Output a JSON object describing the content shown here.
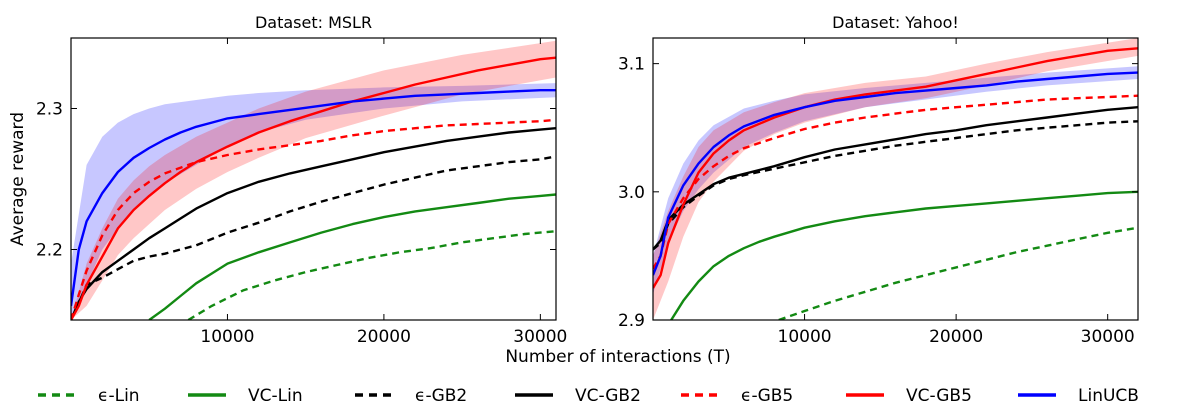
{
  "figure": {
    "xlabel": "Number of interactions (T)"
  },
  "legend": [
    {
      "label": "ϵ-Lin",
      "color": "#138a13",
      "dash": true
    },
    {
      "label": "VC-Lin",
      "color": "#138a13",
      "dash": false
    },
    {
      "label": "ϵ-GB2",
      "color": "#000000",
      "dash": true
    },
    {
      "label": "VC-GB2",
      "color": "#000000",
      "dash": false
    },
    {
      "label": "ϵ-GB5",
      "color": "#ff0000",
      "dash": true
    },
    {
      "label": "VC-GB5",
      "color": "#ff0000",
      "dash": false
    },
    {
      "label": "LinUCB",
      "color": "#0000ff",
      "dash": false
    }
  ],
  "chart_data": [
    {
      "type": "line",
      "title": "Dataset: MSLR",
      "xlabel": "Number of interactions (T)",
      "ylabel": "Average reward",
      "xlim": [
        0,
        31000
      ],
      "ylim": [
        2.15,
        2.35
      ],
      "xticks": [
        10000,
        20000,
        30000
      ],
      "yticks": [
        2.2,
        2.3
      ],
      "ytick_labels": [
        "2.2",
        "2.3"
      ],
      "grid": false,
      "legend": "bottom (shared)",
      "series": [
        {
          "name": "ϵ-Lin",
          "color": "#138a13",
          "dash": true,
          "x": [
            7500,
            9000,
            11000,
            13000,
            15000,
            17000,
            19000,
            21000,
            23000,
            25000,
            27000,
            29000,
            31000
          ],
          "y": [
            2.15,
            2.16,
            2.171,
            2.178,
            2.184,
            2.189,
            2.194,
            2.198,
            2.201,
            2.205,
            2.208,
            2.211,
            2.213
          ]
        },
        {
          "name": "VC-Lin",
          "color": "#138a13",
          "dash": false,
          "x": [
            5000,
            6000,
            7000,
            8000,
            9000,
            10000,
            12000,
            14000,
            16000,
            18000,
            20000,
            22000,
            24000,
            26000,
            28000,
            30000,
            31000
          ],
          "y": [
            2.15,
            2.158,
            2.167,
            2.176,
            2.183,
            2.19,
            2.198,
            2.205,
            2.212,
            2.218,
            2.223,
            2.227,
            2.23,
            2.233,
            2.236,
            2.238,
            2.239
          ]
        },
        {
          "name": "ϵ-GB2",
          "color": "#000000",
          "dash": true,
          "x": [
            0,
            500,
            1000,
            2000,
            3000,
            4000,
            5000,
            6000,
            7000,
            8000,
            10000,
            12000,
            14000,
            16000,
            18000,
            20000,
            22000,
            24000,
            26000,
            28000,
            30000,
            31000
          ],
          "y": [
            2.15,
            2.162,
            2.175,
            2.18,
            2.186,
            2.192,
            2.195,
            2.197,
            2.2,
            2.203,
            2.212,
            2.219,
            2.227,
            2.234,
            2.24,
            2.246,
            2.251,
            2.256,
            2.259,
            2.262,
            2.264,
            2.266
          ]
        },
        {
          "name": "VC-GB2",
          "color": "#000000",
          "dash": false,
          "x": [
            0,
            500,
            1000,
            2000,
            3000,
            4000,
            5000,
            6000,
            7000,
            8000,
            10000,
            12000,
            14000,
            16000,
            18000,
            20000,
            22000,
            24000,
            26000,
            28000,
            30000,
            31000
          ],
          "y": [
            2.15,
            2.163,
            2.172,
            2.184,
            2.192,
            2.2,
            2.208,
            2.215,
            2.222,
            2.229,
            2.24,
            2.248,
            2.254,
            2.259,
            2.264,
            2.269,
            2.273,
            2.277,
            2.28,
            2.283,
            2.285,
            2.286
          ]
        },
        {
          "name": "ϵ-GB5",
          "color": "#ff0000",
          "dash": true,
          "x": [
            0,
            500,
            1000,
            2000,
            3000,
            4000,
            5000,
            6000,
            7000,
            8000,
            10000,
            12000,
            14000,
            16000,
            18000,
            20000,
            22000,
            24000,
            26000,
            28000,
            30000,
            31000
          ],
          "y": [
            2.15,
            2.168,
            2.185,
            2.21,
            2.228,
            2.24,
            2.248,
            2.254,
            2.258,
            2.262,
            2.267,
            2.271,
            2.274,
            2.277,
            2.281,
            2.284,
            2.286,
            2.288,
            2.289,
            2.29,
            2.291,
            2.292
          ]
        },
        {
          "name": "VC-GB5",
          "color": "#ff0000",
          "dash": false,
          "x": [
            0,
            500,
            1000,
            2000,
            3000,
            4000,
            5000,
            6000,
            7000,
            8000,
            10000,
            12000,
            14000,
            16000,
            18000,
            20000,
            22000,
            24000,
            26000,
            28000,
            30000,
            31000
          ],
          "y": [
            2.15,
            2.16,
            2.175,
            2.195,
            2.215,
            2.228,
            2.238,
            2.247,
            2.255,
            2.262,
            2.273,
            2.283,
            2.291,
            2.298,
            2.305,
            2.311,
            2.317,
            2.322,
            2.327,
            2.331,
            2.335,
            2.336
          ]
        },
        {
          "name": "LinUCB",
          "color": "#0000ff",
          "dash": false,
          "x": [
            0,
            500,
            1000,
            2000,
            3000,
            4000,
            5000,
            6000,
            7000,
            8000,
            9000,
            10000,
            12000,
            14000,
            16000,
            18000,
            20000,
            22000,
            24000,
            26000,
            28000,
            30000,
            31000
          ],
          "y": [
            2.16,
            2.2,
            2.22,
            2.24,
            2.255,
            2.265,
            2.272,
            2.278,
            2.283,
            2.287,
            2.29,
            2.293,
            2.296,
            2.299,
            2.302,
            2.305,
            2.307,
            2.309,
            2.31,
            2.311,
            2.312,
            2.313,
            2.313
          ]
        }
      ],
      "bands": [
        {
          "color": "#0000ff",
          "x": [
            0,
            1000,
            2000,
            3000,
            4000,
            5000,
            6000,
            8000,
            10000,
            12000,
            15000,
            20000,
            25000,
            31000
          ],
          "lower": [
            2.15,
            2.175,
            2.2,
            2.215,
            2.228,
            2.238,
            2.247,
            2.26,
            2.273,
            2.283,
            2.292,
            2.3,
            2.305,
            2.308
          ],
          "upper": [
            2.19,
            2.26,
            2.28,
            2.29,
            2.296,
            2.3,
            2.303,
            2.306,
            2.309,
            2.311,
            2.313,
            2.315,
            2.316,
            2.318
          ]
        },
        {
          "color": "#ff0000",
          "x": [
            0,
            1000,
            2000,
            3000,
            4000,
            5000,
            6000,
            8000,
            10000,
            12000,
            15000,
            20000,
            25000,
            31000
          ],
          "lower": [
            2.15,
            2.16,
            2.178,
            2.196,
            2.208,
            2.218,
            2.228,
            2.243,
            2.255,
            2.265,
            2.279,
            2.295,
            2.31,
            2.322
          ],
          "upper": [
            2.15,
            2.19,
            2.215,
            2.236,
            2.249,
            2.259,
            2.267,
            2.28,
            2.29,
            2.3,
            2.312,
            2.327,
            2.338,
            2.348
          ]
        }
      ]
    },
    {
      "type": "line",
      "title": "Dataset: Yahoo!",
      "xlabel": "Number of interactions (T)",
      "ylabel": "",
      "xlim": [
        0,
        32000
      ],
      "ylim": [
        2.9,
        3.12
      ],
      "xticks": [
        10000,
        20000,
        30000
      ],
      "yticks": [
        2.9,
        3.0,
        3.1
      ],
      "ytick_labels": [
        "2.9",
        "3.0",
        "3.1"
      ],
      "grid": false,
      "legend": "bottom (shared)",
      "series": [
        {
          "name": "ϵ-Lin",
          "color": "#138a13",
          "dash": true,
          "x": [
            8300,
            10000,
            12000,
            14000,
            16000,
            18000,
            20000,
            22000,
            24000,
            26000,
            28000,
            30000,
            32000
          ],
          "y": [
            2.9,
            2.907,
            2.915,
            2.922,
            2.929,
            2.935,
            2.941,
            2.947,
            2.953,
            2.958,
            2.963,
            2.968,
            2.972
          ]
        },
        {
          "name": "VC-Lin",
          "color": "#138a13",
          "dash": false,
          "x": [
            1200,
            2000,
            3000,
            4000,
            5000,
            6000,
            7000,
            8000,
            10000,
            12000,
            14000,
            16000,
            18000,
            20000,
            22000,
            24000,
            26000,
            28000,
            30000,
            32000
          ],
          "y": [
            2.9,
            2.915,
            2.93,
            2.942,
            2.95,
            2.956,
            2.961,
            2.965,
            2.972,
            2.977,
            2.981,
            2.984,
            2.987,
            2.989,
            2.991,
            2.993,
            2.995,
            2.997,
            2.999,
            3.0
          ]
        },
        {
          "name": "ϵ-GB2",
          "color": "#000000",
          "dash": true,
          "x": [
            0,
            500,
            1000,
            2000,
            3000,
            4000,
            5000,
            6000,
            8000,
            10000,
            12000,
            14000,
            16000,
            18000,
            20000,
            22000,
            24000,
            26000,
            28000,
            30000,
            32000
          ],
          "y": [
            2.955,
            2.96,
            2.975,
            2.988,
            2.997,
            3.005,
            3.01,
            3.013,
            3.018,
            3.023,
            3.028,
            3.032,
            3.036,
            3.039,
            3.042,
            3.045,
            3.048,
            3.05,
            3.052,
            3.054,
            3.055
          ]
        },
        {
          "name": "VC-GB2",
          "color": "#000000",
          "dash": false,
          "x": [
            0,
            500,
            1000,
            2000,
            3000,
            4000,
            5000,
            6000,
            8000,
            10000,
            12000,
            14000,
            16000,
            18000,
            20000,
            22000,
            24000,
            26000,
            28000,
            30000,
            32000
          ],
          "y": [
            2.955,
            2.962,
            2.978,
            2.99,
            2.998,
            3.006,
            3.011,
            3.014,
            3.02,
            3.027,
            3.033,
            3.037,
            3.041,
            3.045,
            3.048,
            3.052,
            3.055,
            3.058,
            3.061,
            3.064,
            3.066
          ]
        },
        {
          "name": "ϵ-GB5",
          "color": "#ff0000",
          "dash": true,
          "x": [
            0,
            500,
            1000,
            2000,
            3000,
            4000,
            5000,
            6000,
            8000,
            10000,
            12000,
            14000,
            16000,
            18000,
            20000,
            22000,
            24000,
            26000,
            28000,
            30000,
            32000
          ],
          "y": [
            2.94,
            2.95,
            2.975,
            2.995,
            3.01,
            3.02,
            3.028,
            3.034,
            3.042,
            3.049,
            3.054,
            3.058,
            3.061,
            3.064,
            3.066,
            3.068,
            3.07,
            3.072,
            3.073,
            3.074,
            3.075
          ]
        },
        {
          "name": "VC-GB5",
          "color": "#ff0000",
          "dash": false,
          "x": [
            0,
            500,
            1000,
            2000,
            3000,
            4000,
            5000,
            6000,
            8000,
            10000,
            12000,
            14000,
            16000,
            18000,
            20000,
            22000,
            24000,
            26000,
            28000,
            30000,
            32000
          ],
          "y": [
            2.925,
            2.935,
            2.96,
            2.99,
            3.015,
            3.03,
            3.04,
            3.048,
            3.058,
            3.066,
            3.072,
            3.076,
            3.079,
            3.082,
            3.087,
            3.092,
            3.097,
            3.102,
            3.106,
            3.11,
            3.112
          ]
        },
        {
          "name": "LinUCB",
          "color": "#0000ff",
          "dash": false,
          "x": [
            0,
            500,
            1000,
            2000,
            3000,
            4000,
            5000,
            6000,
            8000,
            10000,
            12000,
            14000,
            16000,
            18000,
            20000,
            22000,
            24000,
            26000,
            28000,
            30000,
            32000
          ],
          "y": [
            2.935,
            2.95,
            2.98,
            3.005,
            3.022,
            3.035,
            3.044,
            3.051,
            3.06,
            3.066,
            3.071,
            3.074,
            3.077,
            3.079,
            3.081,
            3.083,
            3.086,
            3.088,
            3.09,
            3.092,
            3.093
          ]
        }
      ],
      "bands": [
        {
          "color": "#0000ff",
          "x": [
            0,
            1000,
            2000,
            3000,
            4000,
            6000,
            8000,
            10000,
            14000,
            18000,
            22000,
            26000,
            32000
          ],
          "lower": [
            2.92,
            2.96,
            2.985,
            3.002,
            3.015,
            3.035,
            3.046,
            3.055,
            3.066,
            3.072,
            3.078,
            3.083,
            3.088
          ],
          "upper": [
            2.95,
            2.995,
            3.022,
            3.04,
            3.052,
            3.065,
            3.071,
            3.076,
            3.081,
            3.085,
            3.089,
            3.093,
            3.098
          ]
        },
        {
          "color": "#ff0000",
          "x": [
            0,
            1000,
            2000,
            3000,
            4000,
            6000,
            8000,
            10000,
            14000,
            18000,
            22000,
            26000,
            32000
          ],
          "lower": [
            2.9,
            2.93,
            2.965,
            2.992,
            3.008,
            3.032,
            3.045,
            3.054,
            3.066,
            3.073,
            3.083,
            3.094,
            3.106
          ],
          "upper": [
            2.95,
            2.985,
            3.012,
            3.035,
            3.048,
            3.062,
            3.07,
            3.077,
            3.085,
            3.09,
            3.1,
            3.109,
            3.12
          ]
        }
      ]
    }
  ]
}
